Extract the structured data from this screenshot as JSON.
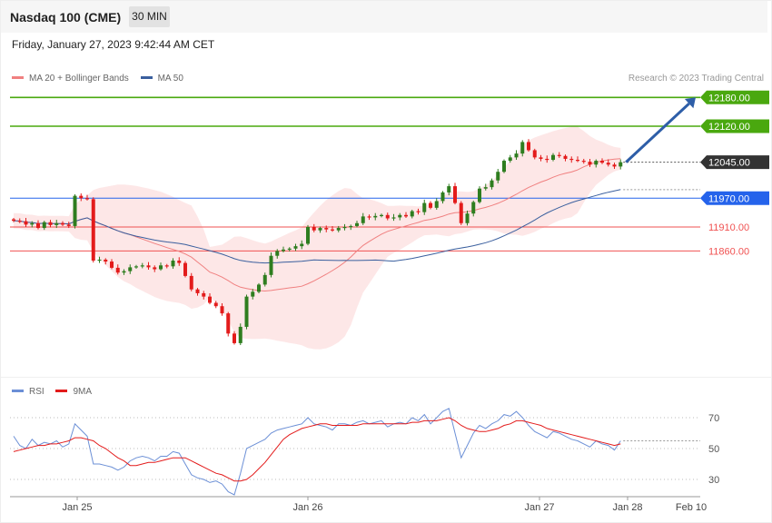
{
  "header": {
    "title": "Nasdaq 100 (CME)",
    "timeframe": "30 MIN"
  },
  "datetime": "Friday, January 27, 2023 9:42:44 AM CET",
  "copyright": "Research © 2023 Trading Central",
  "legend_price": {
    "ma20": "MA 20 + Bollinger Bands",
    "ma50": "MA 50"
  },
  "legend_rsi": {
    "rsi": "RSI",
    "ma9": "9MA"
  },
  "colors": {
    "up": "#2e7d1f",
    "down": "#e31b1b",
    "ma20": "#f08080",
    "ma50": "#3a5f9e",
    "band": "#fde4e4",
    "resistance": "#4aa80f",
    "support_blue": "#2563eb",
    "support_red": "#f05252",
    "arrow": "#2e5ea8",
    "rsi": "#6b8fd6",
    "rsi_ma": "#e31b1b",
    "current": "#333333"
  },
  "chart_data": [
    {
      "type": "candlestick",
      "title": "Nasdaq 100 (CME)",
      "timeframe": "30 MIN",
      "x_ticks": [
        "Jan 25",
        "Jan 26",
        "Jan 27",
        "Jan 28",
        "Feb 10"
      ],
      "current_price": 12045.0,
      "levels": [
        {
          "value": 12180.0,
          "label": "12180.00",
          "kind": "resistance"
        },
        {
          "value": 12120.0,
          "label": "12120.00",
          "kind": "resistance"
        },
        {
          "value": 11970.0,
          "label": "11970.00",
          "kind": "support_blue"
        },
        {
          "value": 11910.0,
          "label": "11910.00",
          "kind": "support_red"
        },
        {
          "value": 11860.0,
          "label": "11860.00",
          "kind": "support_red"
        }
      ],
      "current_label": "12045.00",
      "forecast_arrow": {
        "from": 12045,
        "to": 12180
      },
      "closes": [
        11923,
        11922,
        11915,
        11918,
        11908,
        11920,
        11914,
        11918,
        11915,
        11912,
        11975,
        11970,
        11968,
        11840,
        11842,
        11838,
        11825,
        11815,
        11818,
        11826,
        11828,
        11830,
        11826,
        11822,
        11830,
        11828,
        11840,
        11835,
        11808,
        11780,
        11772,
        11765,
        11752,
        11745,
        11730,
        11688,
        11668,
        11702,
        11765,
        11775,
        11790,
        11810,
        11850,
        11860,
        11863,
        11865,
        11870,
        11875,
        11910,
        11903,
        11908,
        11905,
        11903,
        11908,
        11910,
        11912,
        11918,
        11932,
        11930,
        11933,
        11935,
        11928,
        11930,
        11935,
        11932,
        11943,
        11941,
        11960,
        11950,
        11964,
        11982,
        11995,
        11960,
        11918,
        11938,
        11962,
        11990,
        11993,
        12007,
        12025,
        12048,
        12055,
        12063,
        12087,
        12070,
        12055,
        12052,
        12050,
        12060,
        12058,
        12052,
        12050,
        12048,
        12046,
        12040,
        12048,
        12044,
        12040,
        12036,
        12045
      ]
    },
    {
      "type": "line",
      "title": "RSI",
      "y_ticks": [
        70,
        50,
        30
      ],
      "series": [
        {
          "name": "RSI",
          "values": [
            58,
            52,
            50,
            56,
            52,
            54,
            53,
            55,
            51,
            53,
            66,
            62,
            58,
            40,
            40,
            39,
            38,
            36,
            38,
            42,
            44,
            45,
            44,
            42,
            45,
            45,
            48,
            47,
            40,
            33,
            31,
            30,
            28,
            29,
            27,
            22,
            20,
            34,
            50,
            52,
            54,
            56,
            60,
            62,
            63,
            64,
            65,
            66,
            70,
            66,
            65,
            64,
            62,
            66,
            66,
            65,
            67,
            68,
            66,
            67,
            68,
            64,
            66,
            67,
            66,
            70,
            68,
            72,
            66,
            70,
            74,
            76,
            60,
            44,
            52,
            60,
            65,
            63,
            66,
            68,
            72,
            71,
            74,
            70,
            65,
            61,
            59,
            57,
            61,
            60,
            58,
            56,
            55,
            53,
            51,
            55,
            53,
            52,
            49,
            55
          ]
        },
        {
          "name": "9MA",
          "values": [
            48,
            49,
            50,
            51,
            52,
            52,
            53,
            53,
            54,
            55,
            57,
            57,
            56,
            55,
            52,
            50,
            47,
            44,
            42,
            39,
            39,
            40,
            41,
            41,
            42,
            43,
            44,
            44,
            44,
            42,
            40,
            38,
            36,
            34,
            33,
            31,
            29,
            29,
            30,
            33,
            37,
            41,
            46,
            51,
            56,
            59,
            61,
            63,
            64,
            65,
            66,
            66,
            65,
            65,
            65,
            65,
            65,
            66,
            66,
            66,
            66,
            66,
            66,
            66,
            66,
            67,
            67,
            68,
            68,
            68,
            69,
            70,
            68,
            65,
            63,
            62,
            61,
            61,
            62,
            63,
            65,
            66,
            68,
            68,
            67,
            66,
            65,
            63,
            62,
            61,
            60,
            59,
            58,
            57,
            56,
            55,
            54,
            53,
            52,
            53
          ]
        }
      ]
    }
  ]
}
